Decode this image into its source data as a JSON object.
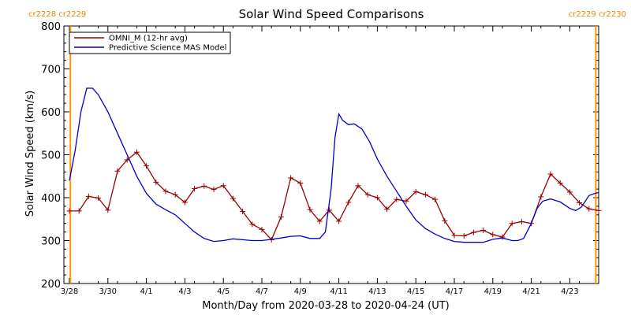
{
  "chart_data": {
    "type": "line",
    "title": "Solar Wind Speed Comparisons",
    "xlabel": "Month/Day from 2020-03-28 to 2020-04-24 (UT)",
    "ylabel": "Solar Wind Speed (km/s)",
    "xlim": [
      0,
      27.5
    ],
    "ylim": [
      200,
      800
    ],
    "yticks": [
      200,
      300,
      400,
      500,
      600,
      700,
      800
    ],
    "xticks": [
      {
        "label": "3/28",
        "day": 0
      },
      {
        "label": "3/30",
        "day": 2
      },
      {
        "label": "4/1",
        "day": 4
      },
      {
        "label": "4/3",
        "day": 6
      },
      {
        "label": "4/5",
        "day": 8
      },
      {
        "label": "4/7",
        "day": 10
      },
      {
        "label": "4/9",
        "day": 12
      },
      {
        "label": "4/11",
        "day": 14
      },
      {
        "label": "4/13",
        "day": 16
      },
      {
        "label": "4/15",
        "day": 18
      },
      {
        "label": "4/17",
        "day": 20
      },
      {
        "label": "4/19",
        "day": 22
      },
      {
        "label": "4/21",
        "day": 24
      },
      {
        "label": "4/23",
        "day": 26
      }
    ],
    "carrington_markers": [
      {
        "day": 0.05,
        "label": "cr2228 cr2229",
        "side": "left"
      },
      {
        "day": 27.35,
        "label": "cr2229 cr2230",
        "side": "right"
      }
    ],
    "legend": {
      "placement": "top-left"
    },
    "series": [
      {
        "name": "OMNI_M (12-hr avg)",
        "color": "#990000",
        "marker": "plus",
        "x": [
          0,
          0.5,
          1,
          1.5,
          2,
          2.5,
          3,
          3.5,
          4,
          4.5,
          5,
          5.5,
          6,
          6.5,
          7,
          7.5,
          8,
          8.5,
          9,
          9.5,
          10,
          10.5,
          11,
          11.5,
          12,
          12.5,
          13,
          13.5,
          14,
          14.5,
          15,
          15.5,
          16,
          16.5,
          17,
          17.5,
          18,
          18.5,
          19,
          19.5,
          20,
          20.5,
          21,
          21.5,
          22,
          22.5,
          23,
          23.5,
          24,
          24.5,
          25,
          25.5,
          26,
          26.5,
          27,
          27.5
        ],
        "y": [
          369,
          369,
          403,
          399,
          371,
          462,
          488,
          506,
          474,
          436,
          415,
          407,
          389,
          421,
          427,
          419,
          428,
          398,
          368,
          338,
          326,
          302,
          355,
          446,
          434,
          372,
          345,
          371,
          345,
          389,
          428,
          407,
          400,
          373,
          396,
          392,
          414,
          407,
          396,
          346,
          312,
          311,
          319,
          324,
          314,
          308,
          340,
          344,
          340,
          402,
          455,
          434,
          413,
          388,
          374,
          370
        ]
      },
      {
        "name": "Predictive Science MAS Model",
        "color": "#0000cc",
        "marker": "none",
        "x": [
          0,
          0.3,
          0.6,
          0.9,
          1.2,
          1.5,
          2.0,
          2.5,
          3.0,
          3.5,
          4.0,
          4.5,
          5.0,
          5.5,
          6.0,
          6.5,
          7.0,
          7.5,
          8.0,
          8.5,
          9.0,
          9.5,
          10.0,
          10.5,
          11.0,
          11.5,
          12.0,
          12.5,
          13.0,
          13.3,
          13.6,
          13.8,
          14.0,
          14.2,
          14.5,
          14.8,
          15.2,
          15.6,
          16.0,
          16.5,
          17.0,
          17.5,
          18.0,
          18.5,
          19.0,
          19.5,
          20.0,
          20.5,
          21.0,
          21.5,
          22.0,
          22.5,
          23.0,
          23.3,
          23.6,
          24.0,
          24.3,
          24.6,
          25.0,
          25.5,
          26.0,
          26.3,
          26.6,
          27.0,
          27.3,
          27.5
        ],
        "y": [
          440,
          510,
          600,
          655,
          655,
          640,
          600,
          550,
          500,
          450,
          410,
          385,
          372,
          360,
          340,
          320,
          305,
          298,
          300,
          304,
          302,
          300,
          300,
          303,
          306,
          310,
          311,
          305,
          305,
          320,
          420,
          540,
          595,
          580,
          570,
          572,
          560,
          530,
          490,
          450,
          415,
          380,
          348,
          328,
          315,
          305,
          298,
          296,
          296,
          296,
          303,
          306,
          300,
          300,
          305,
          340,
          375,
          392,
          397,
          390,
          375,
          370,
          378,
          405,
          410,
          412
        ]
      }
    ]
  }
}
